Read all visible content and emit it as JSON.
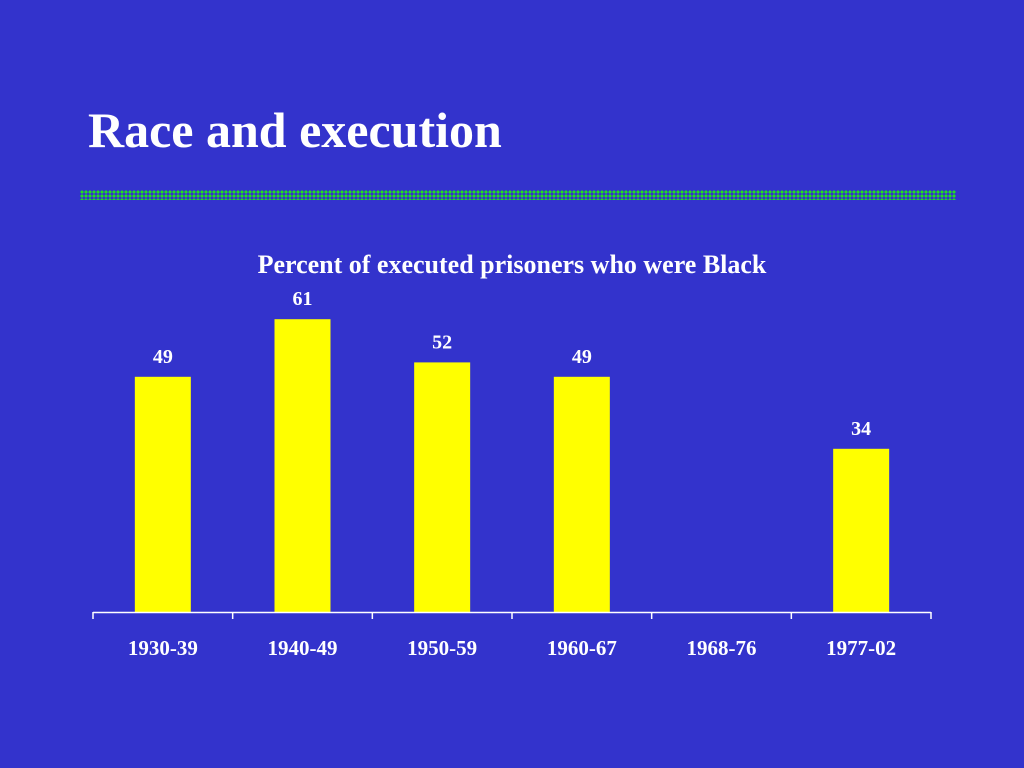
{
  "slide": {
    "title": "Race and execution"
  },
  "colors": {
    "background": "#3333cc",
    "bar": "#ffff00",
    "text": "#ffffff",
    "axis": "#ffffff",
    "rule": "#22dd22"
  },
  "chart_data": {
    "type": "bar",
    "title": "Percent of executed prisoners who were Black",
    "xlabel": "",
    "ylabel": "",
    "categories": [
      "1930-39",
      "1940-49",
      "1950-59",
      "1960-67",
      "1968-76",
      "1977-02"
    ],
    "values": [
      49,
      61,
      52,
      49,
      null,
      34
    ],
    "data_labels": [
      "49",
      "61",
      "52",
      "49",
      "",
      "34"
    ],
    "ylim": [
      0,
      70
    ],
    "grid": false,
    "legend": "none"
  }
}
